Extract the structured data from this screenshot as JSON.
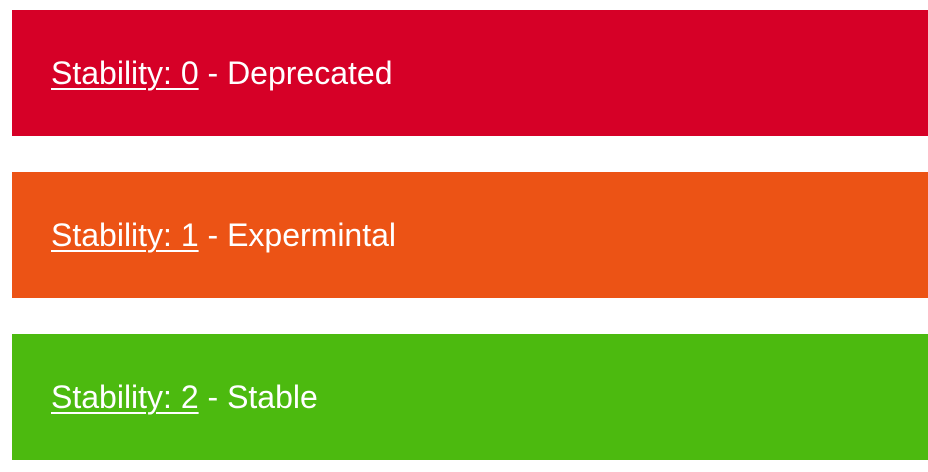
{
  "banners": [
    {
      "link_label": "Stability: 0",
      "separator": " - ",
      "description": "Deprecated",
      "color": "#d60027"
    },
    {
      "link_label": "Stability: 1",
      "separator": " - ",
      "description": "Expermintal",
      "color": "#ec5315"
    },
    {
      "link_label": "Stability: 2",
      "separator": " - ",
      "description": "Stable",
      "color": "#4cba0f"
    }
  ]
}
